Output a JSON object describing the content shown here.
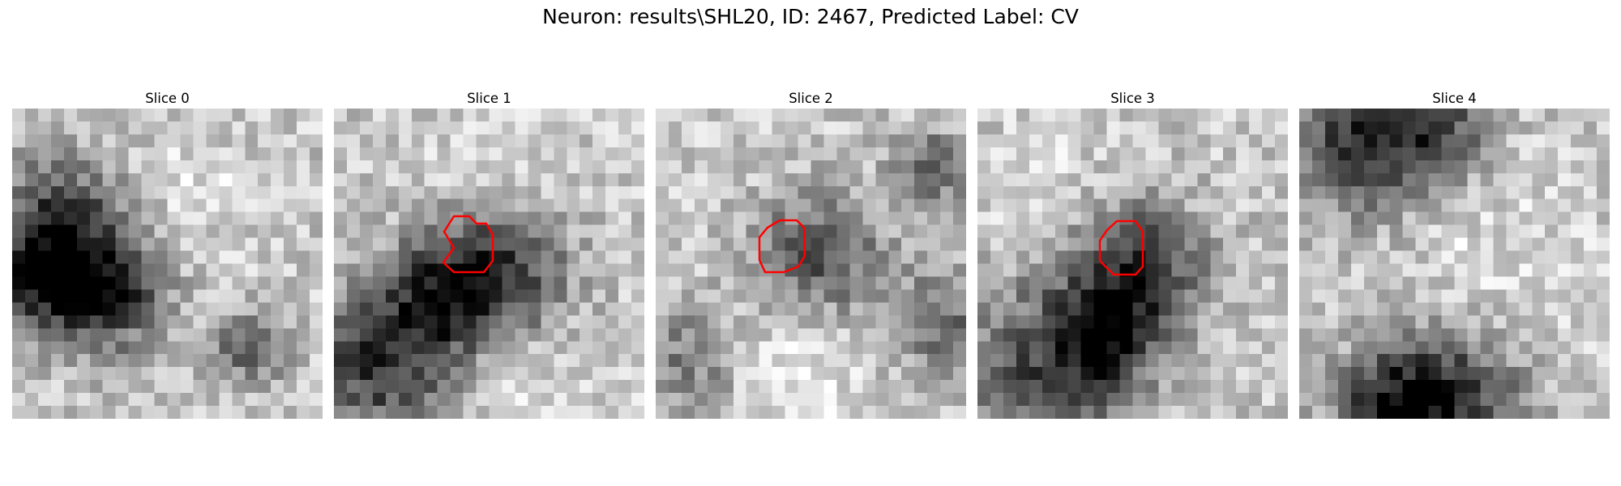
{
  "figure": {
    "title": "Neuron: results\\SHL20, ID: 2467, Predicted Label: CV"
  },
  "panels": [
    {
      "title": "Slice 0",
      "has_contour": false,
      "contour_color": "#ff0000"
    },
    {
      "title": "Slice 1",
      "has_contour": true,
      "contour_color": "#ff0000"
    },
    {
      "title": "Slice 2",
      "has_contour": true,
      "contour_color": "#ff0000"
    },
    {
      "title": "Slice 3",
      "has_contour": true,
      "contour_color": "#ff0000"
    },
    {
      "title": "Slice 4",
      "has_contour": false,
      "contour_color": "#ff0000"
    }
  ],
  "colormap": "grayscale"
}
